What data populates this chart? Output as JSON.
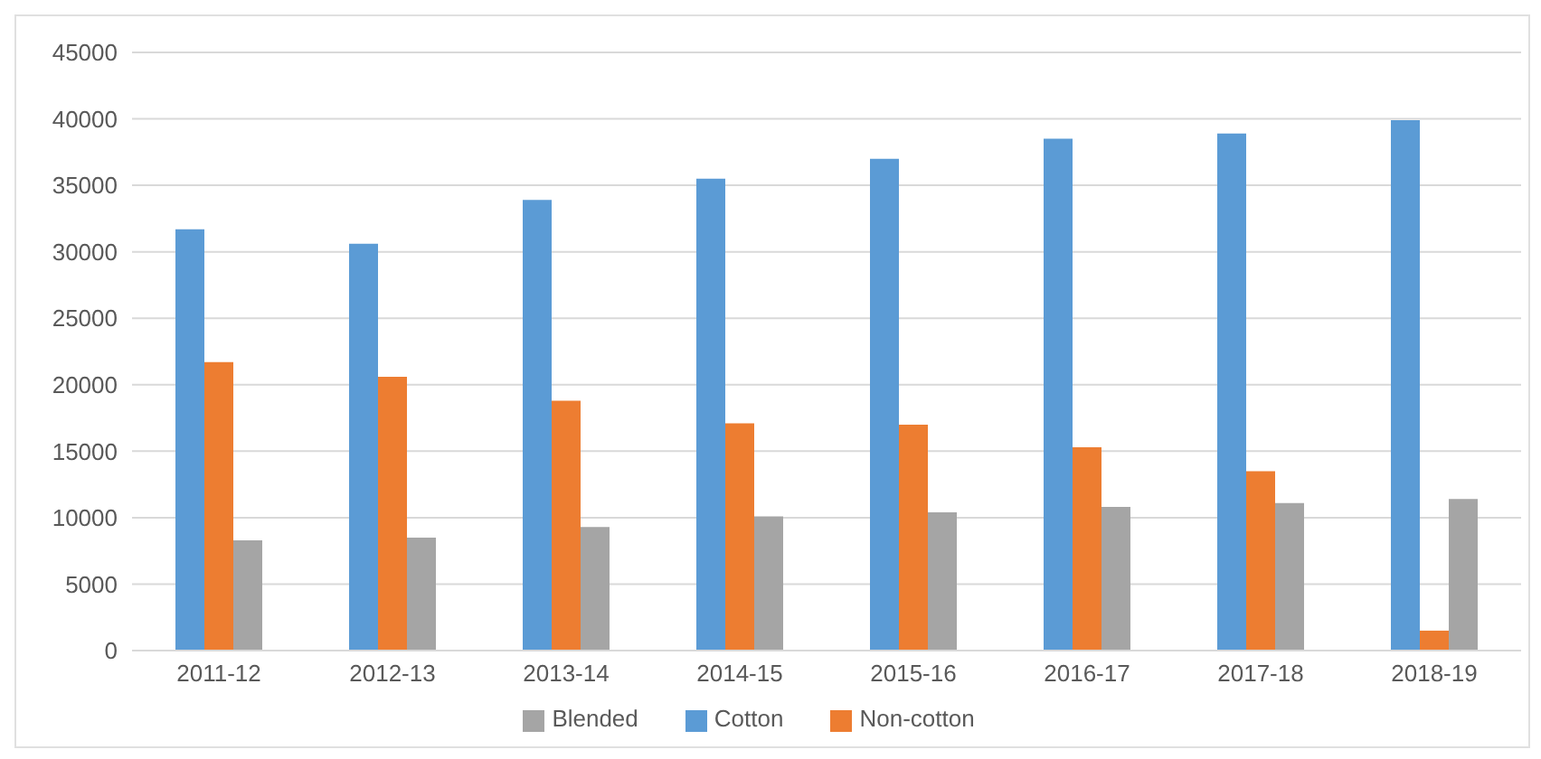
{
  "chart_data": {
    "type": "bar",
    "categories": [
      "2011-12",
      "2012-13",
      "2013-14",
      "2014-15",
      "2015-16",
      "2016-17",
      "2017-18",
      "2018-19"
    ],
    "series": [
      {
        "name": "Cotton",
        "color": "#5b9bd5",
        "values": [
          31700,
          30600,
          33900,
          35500,
          37000,
          38500,
          38900,
          39900
        ]
      },
      {
        "name": "Non-cotton",
        "color": "#ed7d31",
        "values": [
          21700,
          20600,
          18800,
          17100,
          17000,
          15300,
          13500,
          1500
        ]
      },
      {
        "name": "Blended",
        "color": "#a5a5a5",
        "values": [
          8300,
          8500,
          9300,
          10100,
          10400,
          10800,
          11100,
          11400
        ]
      }
    ],
    "ylim": [
      0,
      45000
    ],
    "yticks": [
      0,
      5000,
      10000,
      15000,
      20000,
      25000,
      30000,
      35000,
      40000,
      45000
    ],
    "grid": "y",
    "legend": "bottom"
  }
}
